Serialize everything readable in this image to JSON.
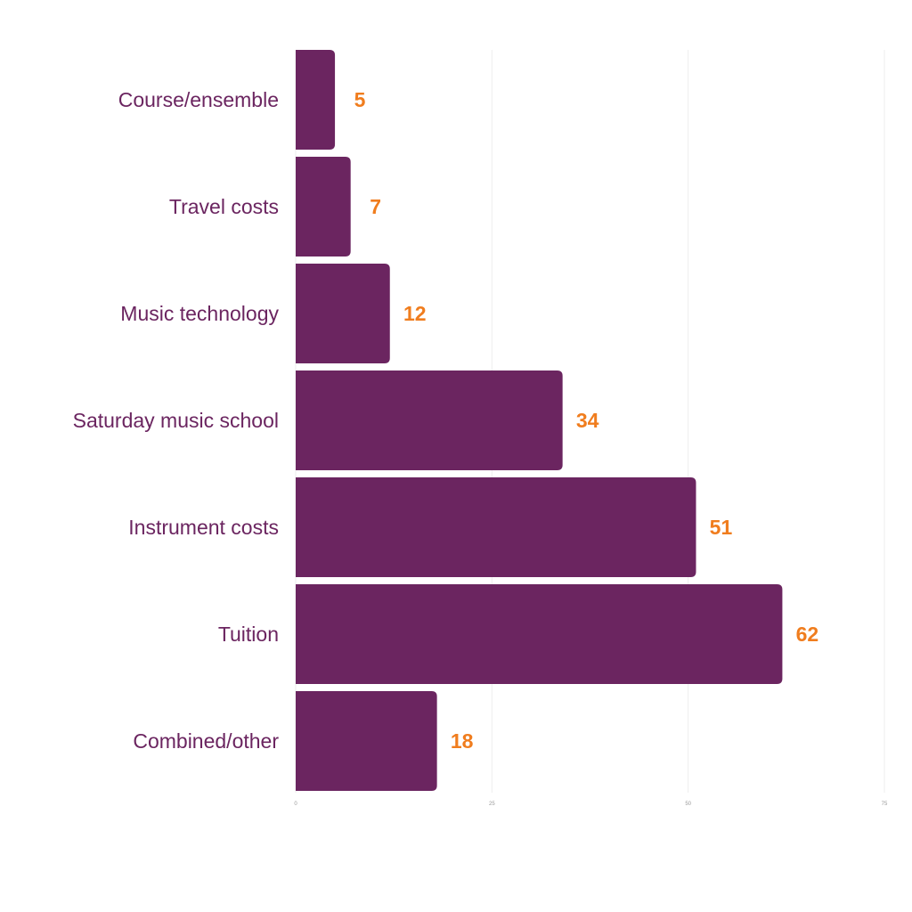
{
  "chart_data": {
    "type": "bar",
    "orientation": "horizontal",
    "categories": [
      "Course/ensemble",
      "Travel costs",
      "Music technology",
      "Saturday music school",
      "Instrument costs",
      "Tuition",
      "Combined/other"
    ],
    "values": [
      5,
      7,
      12,
      34,
      51,
      62,
      18
    ],
    "value_labels": [
      "5",
      "7",
      "12",
      "34",
      "51",
      "62",
      "18"
    ],
    "title": "",
    "xlabel": "",
    "ylabel": "",
    "xlim": [
      0,
      75
    ],
    "xticks": [
      "0",
      "25",
      "50",
      "75"
    ],
    "grid": true,
    "colors": {
      "bar": "#6b2560",
      "value_label": "#f07d1e",
      "category_label": "#6b2560",
      "grid": "#eeeeee"
    }
  }
}
